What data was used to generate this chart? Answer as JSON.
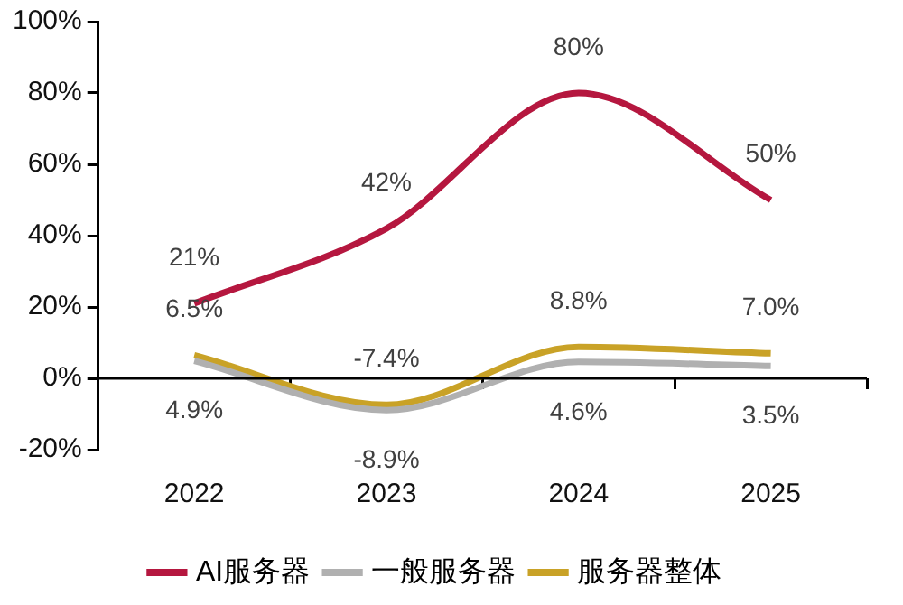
{
  "chart_data": {
    "type": "line",
    "categories": [
      "2022",
      "2023",
      "2024",
      "2025"
    ],
    "series": [
      {
        "name": "AI服务器",
        "color": "#b5173f",
        "values": [
          21,
          42,
          80,
          50
        ]
      },
      {
        "name": "一般服务器",
        "color": "#b0b0b0",
        "values": [
          4.9,
          -8.9,
          4.6,
          3.5
        ]
      },
      {
        "name": "服务器整体",
        "color": "#c9a227",
        "values": [
          6.5,
          -7.4,
          8.8,
          7.0
        ]
      }
    ],
    "ylim": [
      -20,
      100
    ],
    "yticks": [
      {
        "value": -20,
        "label": "-20%"
      },
      {
        "value": 0,
        "label": "0%"
      },
      {
        "value": 20,
        "label": "20%"
      },
      {
        "value": 40,
        "label": "40%"
      },
      {
        "value": 60,
        "label": "60%"
      },
      {
        "value": 80,
        "label": "80%"
      },
      {
        "value": 100,
        "label": "100%"
      }
    ],
    "ref_lines": [
      {
        "axis": "y",
        "value": 0,
        "color": "#000000"
      }
    ],
    "grid": false,
    "legend": "bottom",
    "marker": "none",
    "line_style": "solid",
    "value_labels": [
      [
        "21%",
        "42%",
        "80%",
        "50%"
      ],
      [
        "4.9%",
        "-8.9%",
        "4.6%",
        "3.5%"
      ],
      [
        "6.5%",
        "-7.4%",
        "8.8%",
        "7.0%"
      ]
    ]
  }
}
